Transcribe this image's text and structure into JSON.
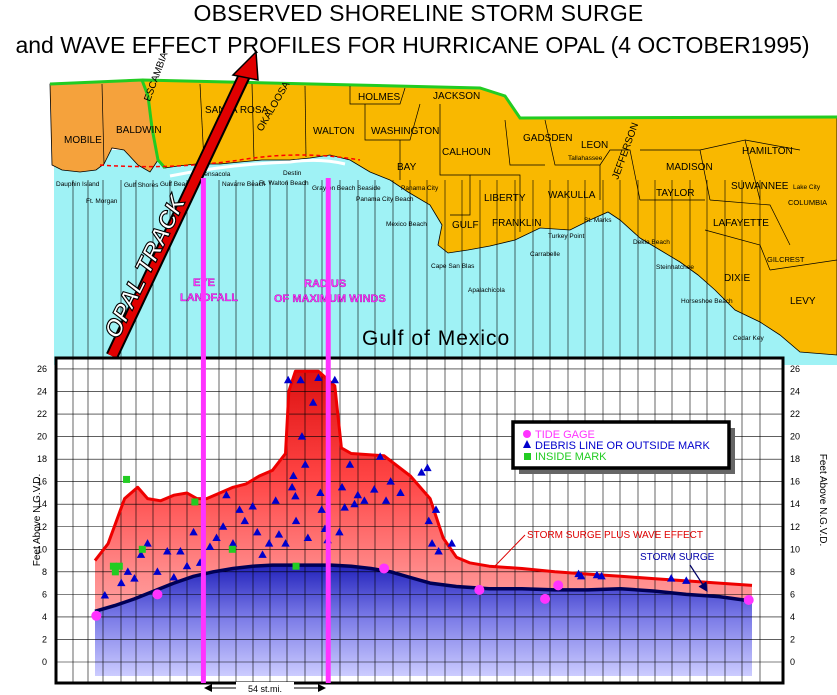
{
  "title": {
    "line1": "OBSERVED SHORELINE STORM SURGE",
    "line2": "and WAVE EFFECT PROFILES FOR HURRICANE OPAL (4 OCTOBER1995)"
  },
  "colors": {
    "land_al": "#f5a23c",
    "land_fl": "#f9b800",
    "sea": "#9ff2f5",
    "track": "#e00000",
    "magenta": "#ff33ff",
    "state_line": "#22cc22",
    "surge_fill": "#3333cc",
    "wave_fill": "#ff4444"
  },
  "map": {
    "counties": [
      {
        "name": "MOBILE"
      },
      {
        "name": "BALDWIN"
      },
      {
        "name": "ESCAMBIA"
      },
      {
        "name": "SANTA ROSA"
      },
      {
        "name": "OKALOOSA"
      },
      {
        "name": "WALTON"
      },
      {
        "name": "HOLMES"
      },
      {
        "name": "JACKSON"
      },
      {
        "name": "WASHINGTON"
      },
      {
        "name": "BAY"
      },
      {
        "name": "CALHOUN"
      },
      {
        "name": "GULF"
      },
      {
        "name": "LIBERTY"
      },
      {
        "name": "FRANKLIN"
      },
      {
        "name": "GADSDEN"
      },
      {
        "name": "LEON"
      },
      {
        "name": "WAKULLA"
      },
      {
        "name": "JEFFERSON"
      },
      {
        "name": "MADISON"
      },
      {
        "name": "TAYLOR"
      },
      {
        "name": "HAMILTON"
      },
      {
        "name": "SUWANNEE"
      },
      {
        "name": "COLUMBIA"
      },
      {
        "name": "LAFAYETTE"
      },
      {
        "name": "DIXIE"
      },
      {
        "name": "GILCREST"
      },
      {
        "name": "LEVY"
      }
    ],
    "places": [
      {
        "name": "Dauphin Island"
      },
      {
        "name": "Ft. Morgan"
      },
      {
        "name": "Gulf Shores"
      },
      {
        "name": "Gulf Beach"
      },
      {
        "name": "Pensacola"
      },
      {
        "name": "Navarre Beach"
      },
      {
        "name": "Ft. Walton Beach"
      },
      {
        "name": "Destin"
      },
      {
        "name": "Grayton Beach Seaside"
      },
      {
        "name": "Panama City Beach"
      },
      {
        "name": "Panama City"
      },
      {
        "name": "Mexico Beach"
      },
      {
        "name": "Cape San Blas"
      },
      {
        "name": "Apalachicola"
      },
      {
        "name": "Carrabelle"
      },
      {
        "name": "Turkey Point"
      },
      {
        "name": "St. Marks"
      },
      {
        "name": "Tallahassee"
      },
      {
        "name": "Dekle Beach"
      },
      {
        "name": "Steinhatchee"
      },
      {
        "name": "Horseshoe Beach"
      },
      {
        "name": "Cedar Key"
      },
      {
        "name": "Lake City"
      }
    ],
    "gulf_label": "Gulf of Mexico",
    "track_label": "OPAL TRACK",
    "eye_label": [
      "EYE",
      "LANDFALL"
    ],
    "rmw_label": [
      "RADIUS",
      "OF MAXIMUM WINDS"
    ]
  },
  "chart_data": {
    "type": "area",
    "ylabel": "Feet Above N.G.V.D.",
    "ylim": [
      -1,
      27
    ],
    "y_ticks": [
      0,
      2,
      4,
      6,
      8,
      10,
      12,
      14,
      16,
      18,
      20,
      22,
      24,
      26
    ],
    "legend": {
      "placement": "right",
      "entries": [
        {
          "label": "TIDE GAGE",
          "color": "#ff33ff",
          "marker": "circle"
        },
        {
          "label": "DEBRIS LINE OR OUTSIDE MARK",
          "color": "#0000cc",
          "marker": "triangle"
        },
        {
          "label": "INSIDE MARK",
          "color": "#22cc22",
          "marker": "square"
        }
      ]
    },
    "annotations": [
      {
        "text": "STORM SURGE PLUS WAVE EFFECT"
      },
      {
        "text": "STORM SURGE"
      },
      {
        "text": "54  st.mi."
      }
    ],
    "x_range": [
      0,
      100
    ],
    "surge_plus_wave": {
      "name": "STORM SURGE PLUS WAVE EFFECT",
      "x": [
        0,
        2,
        4.5,
        6.5,
        8,
        10,
        12,
        14,
        15.5,
        17,
        19,
        21,
        23,
        25,
        27,
        29,
        29.5,
        30.5,
        34,
        36.5,
        37.5,
        39,
        44,
        48,
        51,
        53,
        55,
        57,
        60,
        65,
        70,
        75,
        80,
        85,
        90,
        95,
        100
      ],
      "values": [
        9.0,
        10.5,
        14.5,
        15.5,
        14.5,
        14.3,
        14.8,
        15.0,
        14.5,
        14.5,
        15.0,
        15.5,
        15.8,
        16.5,
        17.0,
        18.5,
        24.0,
        25.8,
        25.8,
        24.5,
        19.0,
        18.5,
        18.3,
        16.5,
        14.5,
        11.0,
        9.3,
        8.8,
        8.5,
        8.3,
        8.0,
        7.8,
        7.6,
        7.4,
        7.2,
        7.0,
        6.8
      ]
    },
    "surge": {
      "name": "STORM SURGE",
      "x": [
        0,
        3,
        6,
        9,
        12,
        15,
        18,
        21,
        24,
        27,
        30,
        33,
        36,
        39,
        42,
        45,
        48,
        51,
        55,
        60,
        65,
        70,
        75,
        80,
        85,
        90,
        95,
        100
      ],
      "values": [
        4.5,
        5.0,
        5.6,
        6.3,
        7.0,
        7.6,
        8.0,
        8.3,
        8.5,
        8.6,
        8.6,
        8.6,
        8.6,
        8.5,
        8.3,
        8.0,
        7.5,
        7.0,
        6.7,
        6.5,
        6.5,
        6.4,
        6.4,
        6.5,
        6.3,
        6.0,
        5.8,
        5.4
      ]
    },
    "tide_gages": [
      {
        "x": 0.2,
        "y": 4.1
      },
      {
        "x": 9.5,
        "y": 6.0
      },
      {
        "x": 44,
        "y": 8.3
      },
      {
        "x": 58.5,
        "y": 6.4
      },
      {
        "x": 68.5,
        "y": 5.6
      },
      {
        "x": 70.5,
        "y": 6.8
      },
      {
        "x": 99.5,
        "y": 5.5
      }
    ],
    "debris_marks": [
      {
        "x": 1.5,
        "y": 5.9
      },
      {
        "x": 4,
        "y": 7.0
      },
      {
        "x": 5,
        "y": 8.0
      },
      {
        "x": 6,
        "y": 7.4
      },
      {
        "x": 7,
        "y": 9.5
      },
      {
        "x": 8,
        "y": 10.5
      },
      {
        "x": 9.5,
        "y": 8.0
      },
      {
        "x": 11,
        "y": 9.8
      },
      {
        "x": 12,
        "y": 7.5
      },
      {
        "x": 13,
        "y": 9.8
      },
      {
        "x": 14,
        "y": 8.5
      },
      {
        "x": 15,
        "y": 11.5
      },
      {
        "x": 16,
        "y": 8.8
      },
      {
        "x": 17.5,
        "y": 10.2
      },
      {
        "x": 18.5,
        "y": 11.0
      },
      {
        "x": 19.5,
        "y": 12.0
      },
      {
        "x": 20,
        "y": 14.8
      },
      {
        "x": 21,
        "y": 10.5
      },
      {
        "x": 22,
        "y": 13.5
      },
      {
        "x": 22.8,
        "y": 12.5
      },
      {
        "x": 24,
        "y": 13.8
      },
      {
        "x": 24.7,
        "y": 11.5
      },
      {
        "x": 25.5,
        "y": 9.5
      },
      {
        "x": 26.5,
        "y": 10.5
      },
      {
        "x": 27.5,
        "y": 14.3
      },
      {
        "x": 28,
        "y": 11.3
      },
      {
        "x": 29,
        "y": 10.5
      },
      {
        "x": 29.4,
        "y": 25.0
      },
      {
        "x": 30,
        "y": 15.5
      },
      {
        "x": 30.2,
        "y": 16.5
      },
      {
        "x": 30.5,
        "y": 14.7
      },
      {
        "x": 30.6,
        "y": 12.5
      },
      {
        "x": 31.3,
        "y": 25.0
      },
      {
        "x": 31.5,
        "y": 20.0
      },
      {
        "x": 32,
        "y": 17.5
      },
      {
        "x": 32.4,
        "y": 11.0
      },
      {
        "x": 33.2,
        "y": 23.0
      },
      {
        "x": 34,
        "y": 25.2
      },
      {
        "x": 34.3,
        "y": 15.0
      },
      {
        "x": 34.5,
        "y": 13.5
      },
      {
        "x": 35,
        "y": 11.8
      },
      {
        "x": 35.4,
        "y": 10.8
      },
      {
        "x": 36.5,
        "y": 25.0
      },
      {
        "x": 37.2,
        "y": 11.5
      },
      {
        "x": 37.6,
        "y": 15.5
      },
      {
        "x": 38,
        "y": 13.7
      },
      {
        "x": 38.8,
        "y": 17.5
      },
      {
        "x": 39.5,
        "y": 14.0
      },
      {
        "x": 40,
        "y": 14.8
      },
      {
        "x": 41,
        "y": 14.3
      },
      {
        "x": 42.5,
        "y": 15.3
      },
      {
        "x": 43.4,
        "y": 18.2
      },
      {
        "x": 44.3,
        "y": 14.3
      },
      {
        "x": 45,
        "y": 16.0
      },
      {
        "x": 46.5,
        "y": 15.0
      },
      {
        "x": 49.7,
        "y": 16.8
      },
      {
        "x": 50.6,
        "y": 17.2
      },
      {
        "x": 50.8,
        "y": 12.5
      },
      {
        "x": 51.3,
        "y": 10.5
      },
      {
        "x": 51.9,
        "y": 13.5
      },
      {
        "x": 52.3,
        "y": 9.8
      },
      {
        "x": 54.3,
        "y": 10.5
      },
      {
        "x": 73.6,
        "y": 7.8
      },
      {
        "x": 74,
        "y": 7.6
      },
      {
        "x": 76.4,
        "y": 7.7
      },
      {
        "x": 77.1,
        "y": 7.6
      },
      {
        "x": 87.7,
        "y": 7.4
      },
      {
        "x": 90,
        "y": 7.2
      }
    ],
    "inside_marks": [
      {
        "x": 2.8,
        "y": 8.5
      },
      {
        "x": 3.1,
        "y": 8.0
      },
      {
        "x": 3.7,
        "y": 8.5
      },
      {
        "x": 4.8,
        "y": 16.2
      },
      {
        "x": 7.2,
        "y": 10.0
      },
      {
        "x": 15.2,
        "y": 14.2
      },
      {
        "x": 20.9,
        "y": 10.0
      },
      {
        "x": 30.6,
        "y": 8.5
      }
    ],
    "eye_landfall_x": 16.5,
    "rmw_x": 35.5
  }
}
